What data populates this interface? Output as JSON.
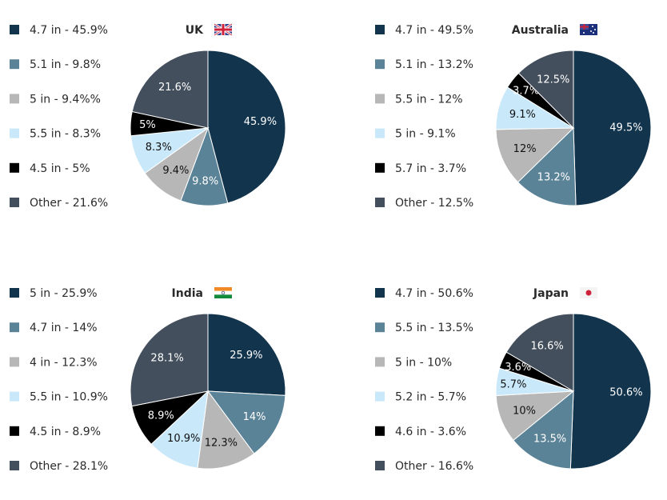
{
  "colors": [
    "#12344d",
    "#5b8397",
    "#b7b7b7",
    "#c9e9fa",
    "#000000",
    "#434f5c"
  ],
  "chart_data": [
    {
      "type": "pie",
      "title": "UK",
      "flag": "uk-flag-icon",
      "start": "12 o'clock",
      "direction": "clockwise",
      "categories": [
        "4.7 in",
        "5.1 in",
        "5 in",
        "5.5 in",
        "4.5 in",
        "Other"
      ],
      "values": [
        45.9,
        9.8,
        9.4,
        8.3,
        5,
        21.6
      ],
      "data_labels": [
        "45.9%",
        "9.8%",
        "9.4%",
        "8.3%",
        "5%",
        "21.6%"
      ],
      "legend": [
        "4.7 in - 45.9%",
        "5.1 in - 9.8%",
        "5 in - 9.4%%",
        "5.5 in - 8.3%",
        "4.5 in - 5%",
        "Other - 21.6%"
      ],
      "legend_position": "left"
    },
    {
      "type": "pie",
      "title": "Australia",
      "flag": "australia-flag-icon",
      "start": "12 o'clock",
      "direction": "clockwise",
      "categories": [
        "4.7 in",
        "5.1 in",
        "5.5 in",
        "5 in",
        "5.7 in",
        "Other"
      ],
      "values": [
        49.5,
        13.2,
        12,
        9.1,
        3.7,
        12.5
      ],
      "data_labels": [
        "49.5%",
        "13.2%",
        "12%",
        "9.1%",
        "3.7%",
        "12.5%"
      ],
      "legend": [
        "4.7 in - 49.5%",
        "5.1 in - 13.2%",
        "5.5 in - 12%",
        "5 in - 9.1%",
        "5.7 in - 3.7%",
        "Other - 12.5%"
      ],
      "legend_position": "left"
    },
    {
      "type": "pie",
      "title": "India",
      "flag": "india-flag-icon",
      "start": "12 o'clock",
      "direction": "clockwise",
      "categories": [
        "5 in",
        "4.7 in",
        "4 in",
        "5.5 in",
        "4.5 in",
        "Other"
      ],
      "values": [
        25.9,
        14,
        12.3,
        10.9,
        8.9,
        28.1
      ],
      "data_labels": [
        "25.9%",
        "14%",
        "12.3%",
        "10.9%",
        "8.9%",
        "28.1%"
      ],
      "legend": [
        "5 in - 25.9%",
        "4.7 in - 14%",
        "4 in - 12.3%",
        "5.5 in - 10.9%",
        "4.5 in - 8.9%",
        "Other - 28.1%"
      ],
      "legend_position": "left"
    },
    {
      "type": "pie",
      "title": "Japan",
      "flag": "japan-flag-icon",
      "start": "12 o'clock",
      "direction": "clockwise",
      "categories": [
        "4.7 in",
        "5.5 in",
        "5 in",
        "5.2 in",
        "4.6 in",
        "Other"
      ],
      "values": [
        50.6,
        13.5,
        10,
        5.7,
        3.6,
        16.6
      ],
      "data_labels": [
        "50.6%",
        "13.5%",
        "10%",
        "5.7%",
        "3.6%",
        "16.6%"
      ],
      "legend": [
        "4.7 in - 50.6%",
        "5.5 in - 13.5%",
        "5 in - 10%",
        "5.2 in - 5.7%",
        "4.6 in - 3.6%",
        "Other - 16.6%"
      ],
      "legend_position": "left"
    }
  ]
}
